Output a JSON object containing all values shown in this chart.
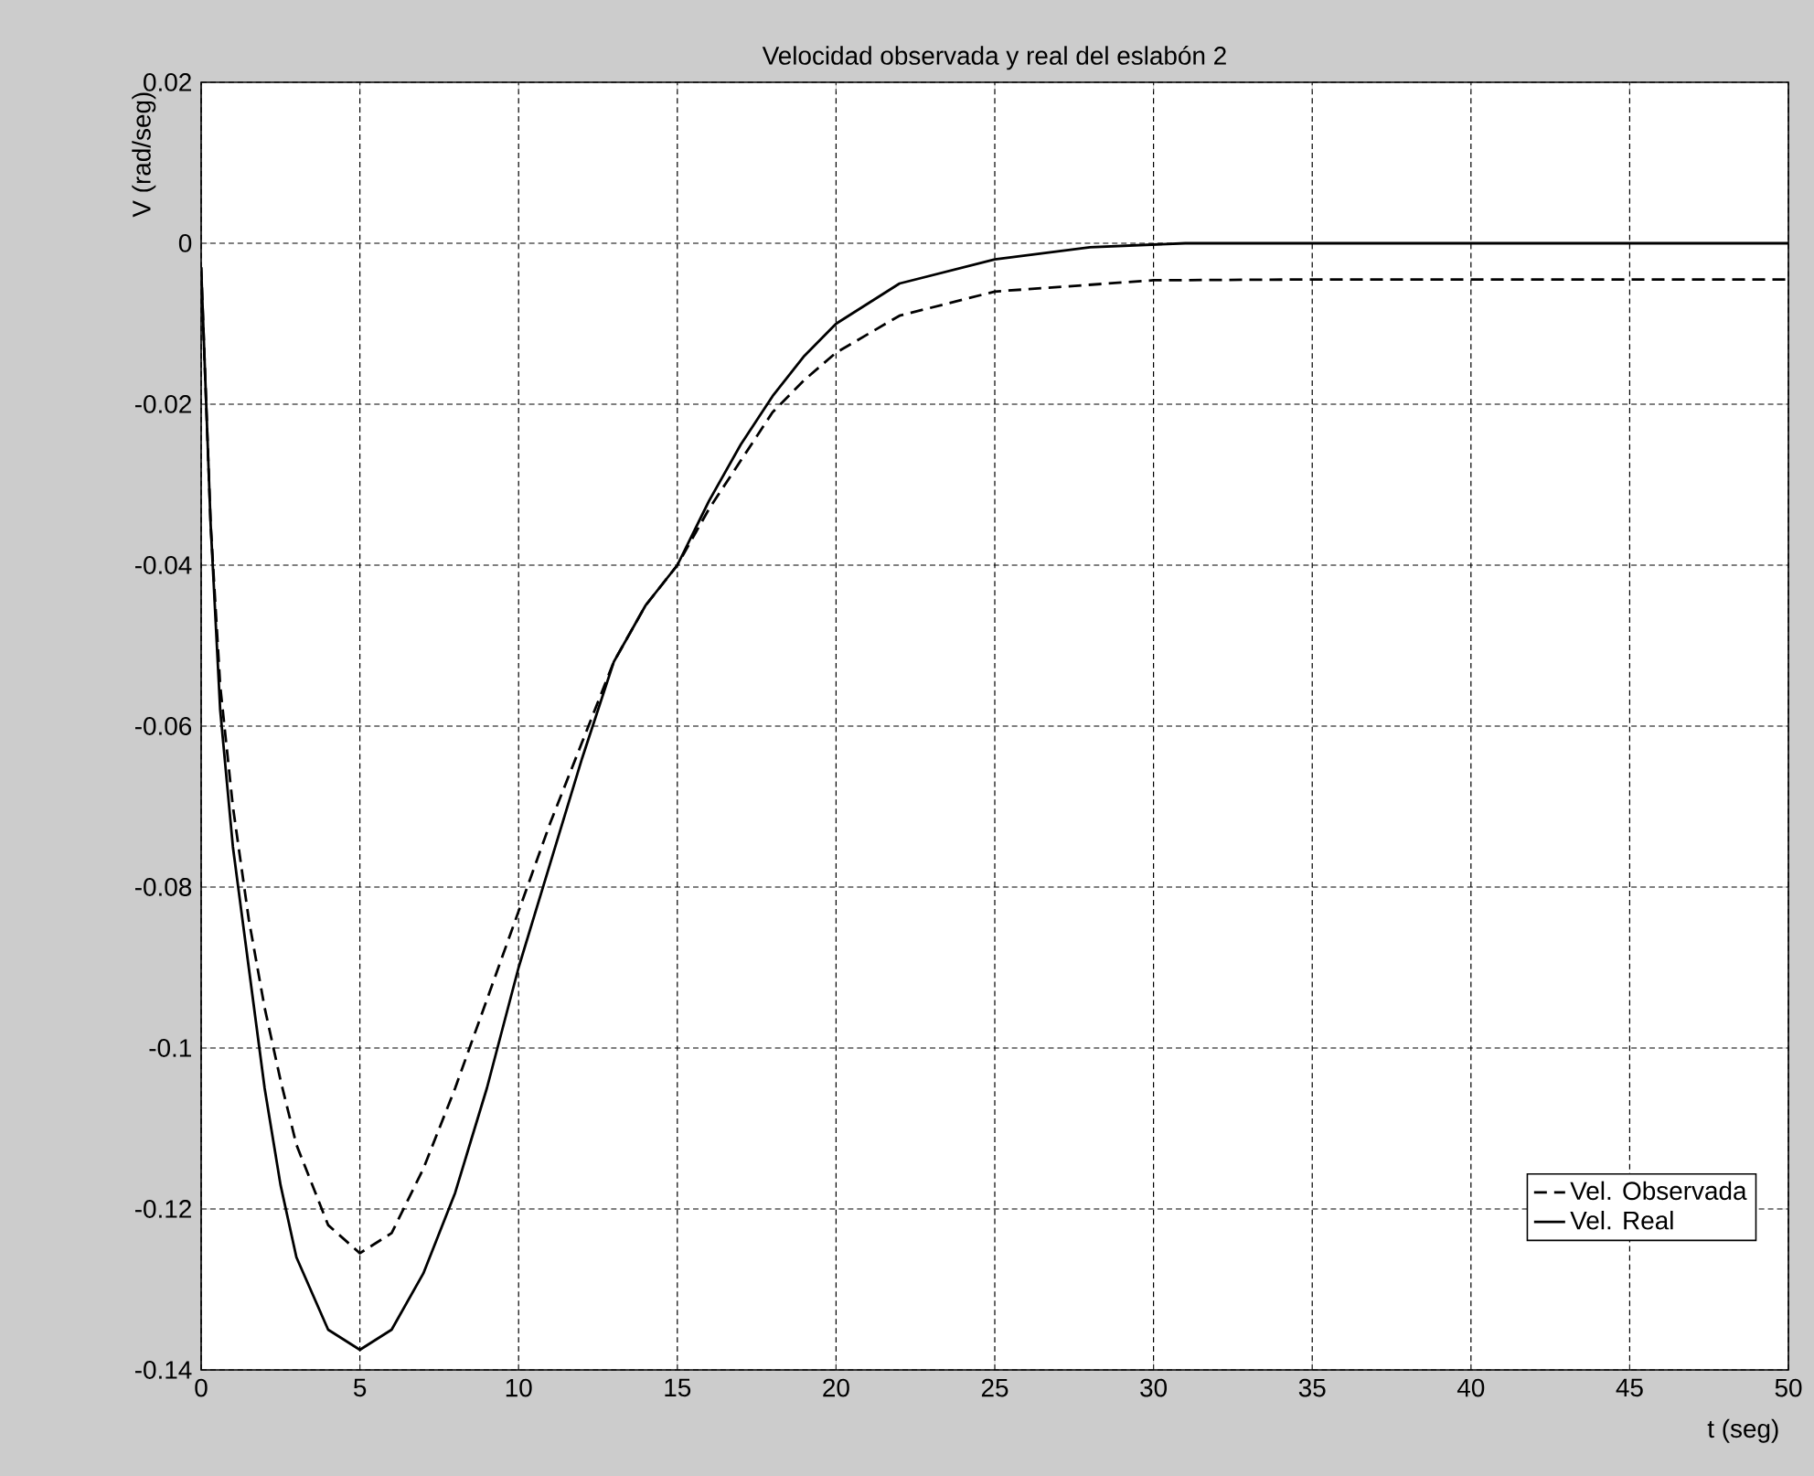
{
  "chart_data": {
    "type": "line",
    "title": "Velocidad observada y real del eslabón 2",
    "xlabel": "t (seg)",
    "ylabel": "V (rad/seg)",
    "xlim": [
      0,
      50
    ],
    "ylim": [
      -0.14,
      0.02
    ],
    "xticks": [
      0,
      5,
      10,
      15,
      20,
      25,
      30,
      35,
      40,
      45,
      50
    ],
    "yticks": [
      -0.14,
      -0.12,
      -0.1,
      -0.08,
      -0.06,
      -0.04,
      -0.02,
      0,
      0.02
    ],
    "grid": true,
    "legend": "bottom right",
    "series": [
      {
        "name": "Vel. Observada",
        "color": "#000000",
        "line_style": "dashed",
        "x": [
          0,
          0.3,
          0.6,
          1,
          1.5,
          2,
          2.5,
          3,
          4,
          5,
          6,
          7,
          8,
          9,
          10,
          11,
          12,
          13,
          14,
          15,
          16,
          17,
          18,
          19,
          20,
          22,
          25,
          30,
          35,
          40,
          45,
          50
        ],
        "values": [
          -0.003,
          -0.035,
          -0.055,
          -0.07,
          -0.084,
          -0.095,
          -0.104,
          -0.112,
          -0.122,
          -0.1255,
          -0.123,
          -0.115,
          -0.105,
          -0.094,
          -0.083,
          -0.072,
          -0.062,
          -0.052,
          -0.045,
          -0.04,
          -0.033,
          -0.027,
          -0.021,
          -0.017,
          -0.0136,
          -0.009,
          -0.006,
          -0.0046,
          -0.0045,
          -0.0045,
          -0.0045,
          -0.0045
        ]
      },
      {
        "name": "Vel. Real",
        "color": "#000000",
        "line_style": "solid",
        "x": [
          0,
          0.3,
          0.6,
          1,
          1.5,
          2,
          2.5,
          3,
          4,
          5,
          6,
          7,
          8,
          9,
          10,
          11,
          12,
          13,
          14,
          15,
          16,
          17,
          18,
          19,
          20,
          22,
          25,
          28,
          31,
          35,
          40,
          45,
          50
        ],
        "values": [
          -0.003,
          -0.035,
          -0.058,
          -0.075,
          -0.09,
          -0.105,
          -0.117,
          -0.126,
          -0.135,
          -0.1375,
          -0.135,
          -0.128,
          -0.118,
          -0.105,
          -0.09,
          -0.077,
          -0.064,
          -0.052,
          -0.045,
          -0.04,
          -0.032,
          -0.025,
          -0.019,
          -0.014,
          -0.01,
          -0.005,
          -0.002,
          -0.0005,
          0,
          0,
          0,
          0,
          0
        ]
      }
    ]
  }
}
